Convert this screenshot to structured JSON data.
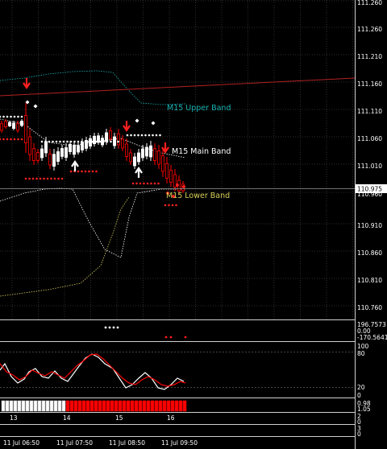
{
  "main": {
    "price_ticks": [
      "111.260",
      "111.210",
      "111.160",
      "111.110",
      "111.060",
      "111.010",
      "110.960",
      "110.910",
      "110.860",
      "110.810",
      "110.760"
    ],
    "current_price": "110.975",
    "labels": {
      "upper": "M15 Upper Band",
      "main": "M15 Main Band",
      "lower": "M15 Lower Band"
    }
  },
  "cci_panel": {
    "top": "196.7573",
    "mid": "0.00",
    "bottom": "-170.5641"
  },
  "stoch_panel": {
    "top": "100",
    "hi": "80",
    "lo": "20",
    "bottom": "0"
  },
  "hour_panel": {
    "ticks": [
      "13",
      "14",
      "15",
      "16"
    ],
    "right_values": [
      "0.98",
      "1.05"
    ]
  },
  "small_panels": {
    "a_top": "2",
    "a_bottom": "0",
    "b_top": "3",
    "b_bottom": "0"
  },
  "time_axis": [
    "11 Jul 06:50",
    "11 Jul 07:50",
    "11 Jul 08:50",
    "11 Jul 09:50"
  ],
  "colors": {
    "grid": "#2e2e2e",
    "bull": "#ffffff",
    "bear": "#ff0000",
    "upper_band": "#19b2b2",
    "main_band": "#ffffff",
    "lower_band": "#d8d05a",
    "trendline": "#b22222"
  }
}
